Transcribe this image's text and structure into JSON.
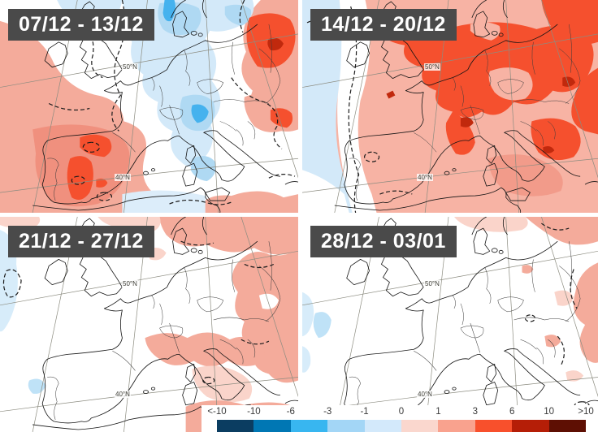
{
  "panels": [
    {
      "label": "07/12 - 13/12"
    },
    {
      "label": "14/12 - 20/12"
    },
    {
      "label": "21/12 - 27/12"
    },
    {
      "label": "28/12 - 03/01"
    }
  ],
  "graticule": {
    "lat_upper": "50°N",
    "lat_lower": "40°N"
  },
  "colorbar": {
    "ticks": [
      "<-10",
      "-10",
      "-6",
      "-3",
      "-1",
      "0",
      "1",
      "3",
      "6",
      "10",
      ">10"
    ],
    "segment_colors": [
      "#0B3D61",
      "#0077B4",
      "#38B6F0",
      "#A3D6F6",
      "#D3E9FB",
      "#FAD7CE",
      "#F9A28E",
      "#F8502C",
      "#B51E07",
      "#5E0F03"
    ]
  },
  "colors": {
    "badge_bg": "#4A4A4A",
    "badge_text": "#FFFFFF",
    "warm_light": "#F4AB9B",
    "warm_strong": "#F5502E",
    "warm_dark": "#C1290D",
    "cold_light": "#D3E9F9",
    "cold_medium": "#AFD9F3"
  }
}
